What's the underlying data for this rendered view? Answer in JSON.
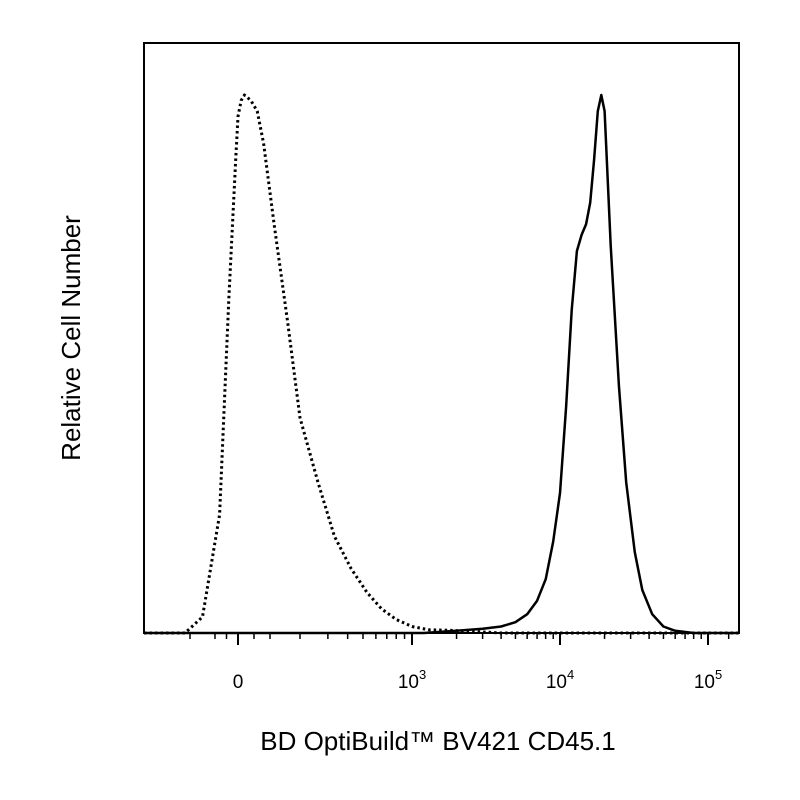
{
  "chart_data": {
    "type": "line",
    "title": "",
    "xlabel": "BD OptiBuild™ BV421 CD45.1",
    "ylabel": "Relative Cell Number",
    "x_scale": "biexponential",
    "xlim": [
      -300,
      180000
    ],
    "ylim": [
      0,
      1
    ],
    "grid": false,
    "legend": "none",
    "x_ticks": [
      {
        "value": 0,
        "base": "0",
        "exp": ""
      },
      {
        "value": 1000,
        "base": "10",
        "exp": "3"
      },
      {
        "value": 10000,
        "base": "10",
        "exp": "4"
      },
      {
        "value": 100000,
        "base": "10",
        "exp": "5"
      }
    ],
    "series": [
      {
        "style": "dotted",
        "color": "#000000",
        "x": [
          -220,
          -150,
          -80,
          -40,
          -10,
          0,
          10,
          20,
          40,
          60,
          80,
          110,
          150,
          200,
          260,
          330,
          420,
          530,
          650,
          800,
          1000,
          1300,
          1800,
          2600,
          4000
        ],
        "y": [
          0.0,
          0.03,
          0.22,
          0.62,
          0.88,
          0.96,
          0.99,
          1.0,
          0.99,
          0.97,
          0.91,
          0.76,
          0.58,
          0.4,
          0.28,
          0.18,
          0.12,
          0.075,
          0.045,
          0.025,
          0.012,
          0.006,
          0.005,
          0.003,
          0.0
        ]
      },
      {
        "style": "solid",
        "color": "#000000",
        "x": [
          1200,
          2000,
          3000,
          4000,
          5000,
          6000,
          7000,
          8000,
          9000,
          10000,
          11000,
          12000,
          13000,
          14000,
          15000,
          16000,
          17000,
          18000,
          19000,
          20000,
          22000,
          25000,
          28000,
          32000,
          36000,
          42000,
          50000,
          60000,
          80000
        ],
        "y": [
          0.0,
          0.004,
          0.008,
          0.012,
          0.02,
          0.035,
          0.06,
          0.1,
          0.17,
          0.26,
          0.42,
          0.6,
          0.71,
          0.74,
          0.76,
          0.8,
          0.88,
          0.97,
          1.0,
          0.97,
          0.72,
          0.46,
          0.28,
          0.15,
          0.08,
          0.035,
          0.012,
          0.004,
          0.0
        ]
      }
    ]
  }
}
